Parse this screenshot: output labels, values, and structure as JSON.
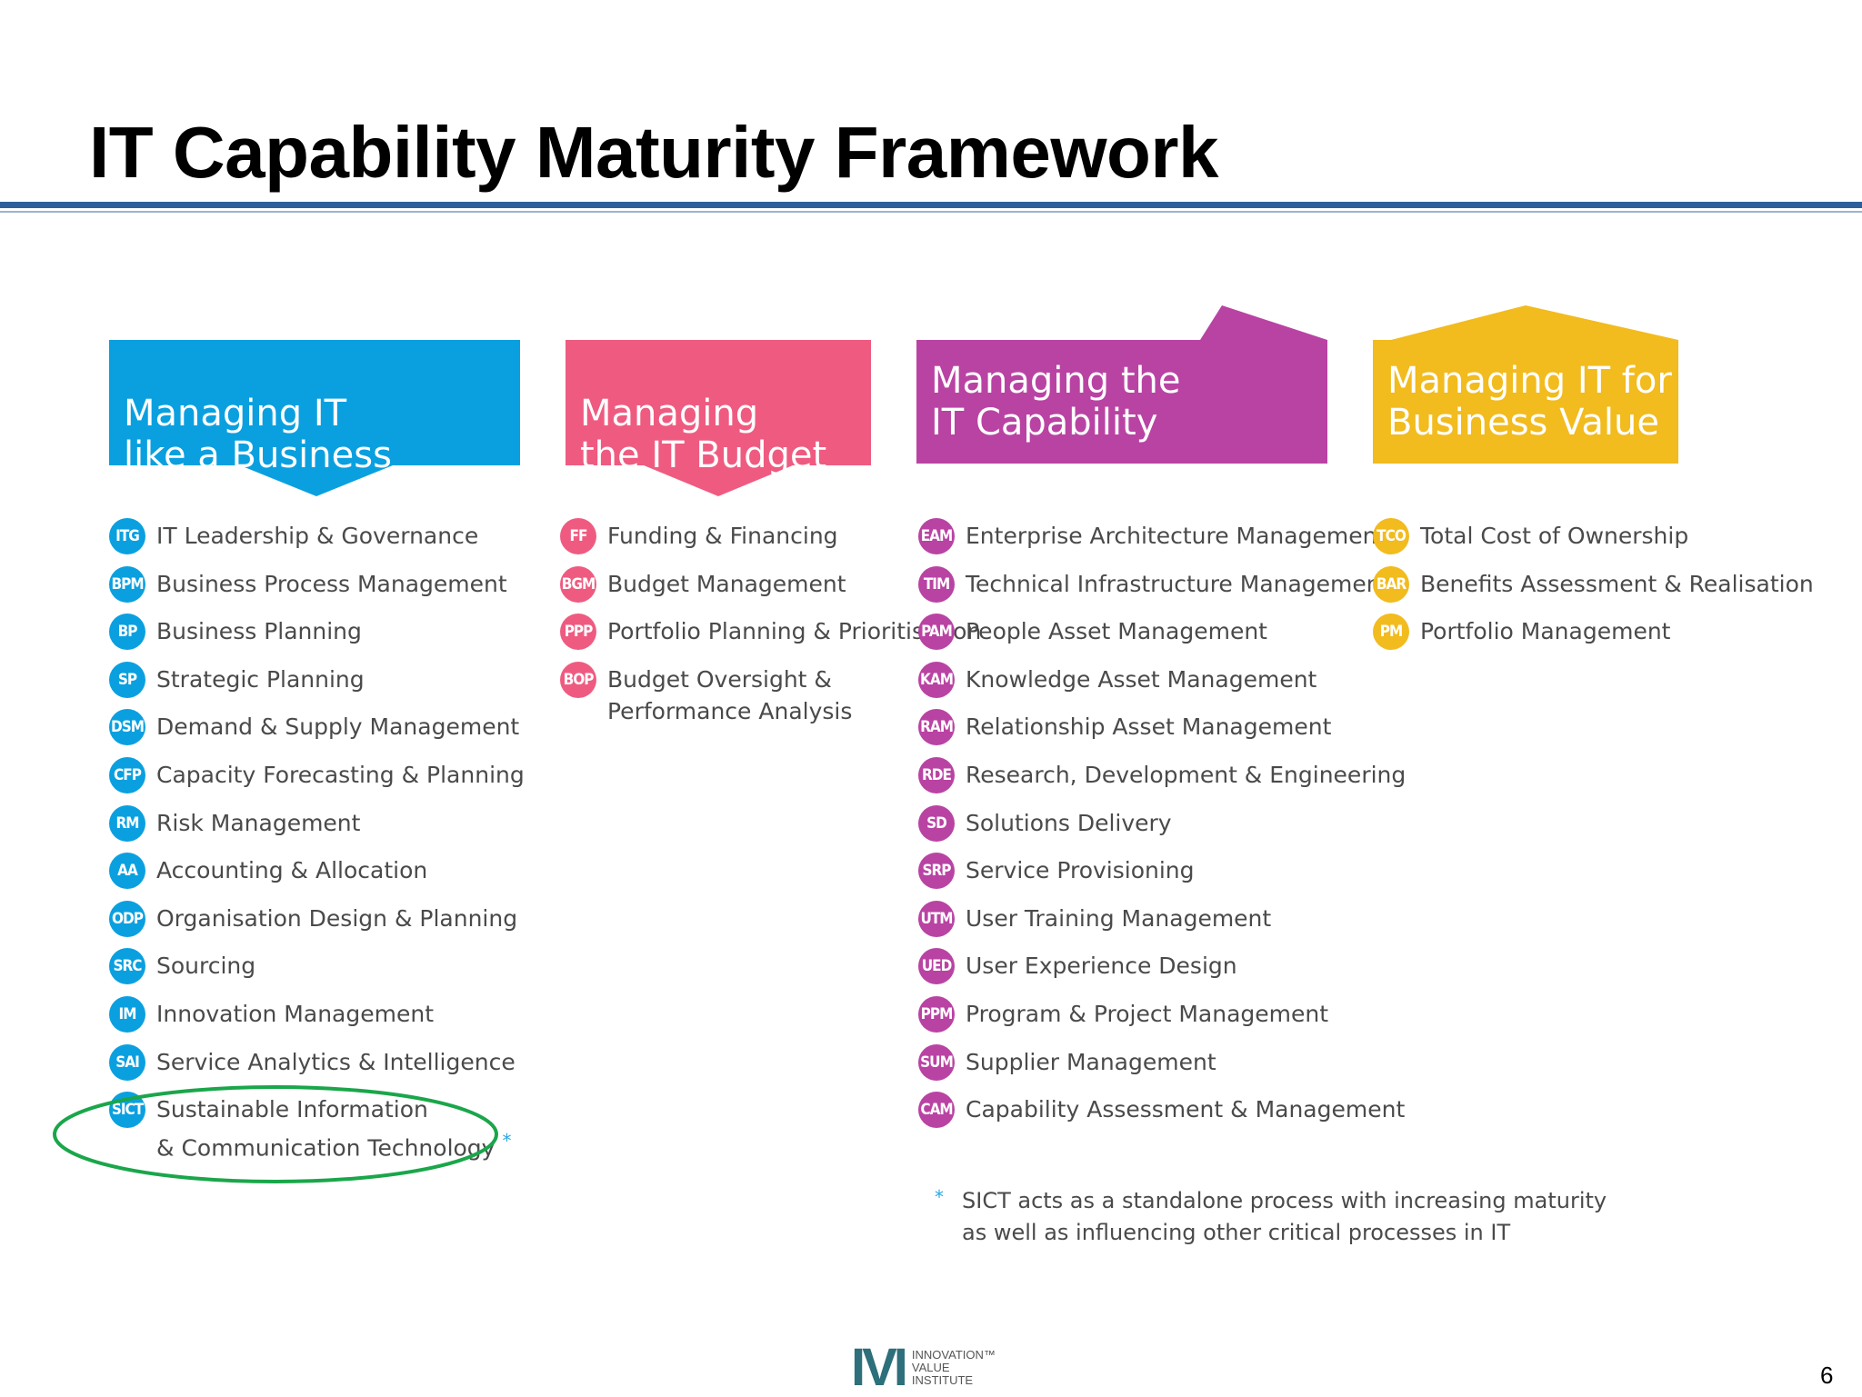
{
  "slide": {
    "title": "IT Capability Maturity Framework",
    "page_number": "6"
  },
  "colors": {
    "blue": "#0aa0e0",
    "pink": "#ef5b80",
    "purple": "#b943a3",
    "yellow": "#f2bb1e",
    "rule": "#2f5f9a",
    "ellipse": "#1aa64a"
  },
  "columns": [
    {
      "id": "business",
      "header_line1": "Managing IT",
      "header_line2": "like a Business",
      "color": "#0aa0e0",
      "items": [
        {
          "code": "ITG",
          "label": "IT Leadership & Governance"
        },
        {
          "code": "BPM",
          "label": "Business Process Management"
        },
        {
          "code": "BP",
          "label": "Business Planning"
        },
        {
          "code": "SP",
          "label": "Strategic Planning"
        },
        {
          "code": "DSM",
          "label": "Demand & Supply Management"
        },
        {
          "code": "CFP",
          "label": "Capacity Forecasting & Planning"
        },
        {
          "code": "RM",
          "label": "Risk Management"
        },
        {
          "code": "AA",
          "label": "Accounting & Allocation"
        },
        {
          "code": "ODP",
          "label": "Organisation Design & Planning"
        },
        {
          "code": "SRC",
          "label": "Sourcing"
        },
        {
          "code": "IM",
          "label": "Innovation Management"
        },
        {
          "code": "SAI",
          "label": "Service Analytics & Intelligence"
        },
        {
          "code": "SICT",
          "label": "Sustainable Information",
          "label2": "& Communication Technology",
          "marker": "*"
        }
      ]
    },
    {
      "id": "budget",
      "header_line1": "Managing",
      "header_line2": "the IT Budget",
      "color": "#ef5b80",
      "items": [
        {
          "code": "FF",
          "label": "Funding & Financing"
        },
        {
          "code": "BGM",
          "label": "Budget Management"
        },
        {
          "code": "PPP",
          "label": "Portfolio Planning & Prioritisation"
        },
        {
          "code": "BOP",
          "label": "Budget Oversight &",
          "label2": "Performance Analysis"
        }
      ]
    },
    {
      "id": "capability",
      "header_line1": "Managing the",
      "header_line2": "IT Capability",
      "color": "#b943a3",
      "items": [
        {
          "code": "EAM",
          "label": "Enterprise Architecture Management"
        },
        {
          "code": "TIM",
          "label": "Technical Infrastructure Management"
        },
        {
          "code": "PAM",
          "label": "People Asset Management"
        },
        {
          "code": "KAM",
          "label": "Knowledge Asset Management"
        },
        {
          "code": "RAM",
          "label": "Relationship Asset Management"
        },
        {
          "code": "RDE",
          "label": "Research, Development & Engineering"
        },
        {
          "code": "SD",
          "label": "Solutions Delivery"
        },
        {
          "code": "SRP",
          "label": "Service Provisioning"
        },
        {
          "code": "UTM",
          "label": "User Training Management"
        },
        {
          "code": "UED",
          "label": "User Experience Design"
        },
        {
          "code": "PPM",
          "label": "Program & Project Management"
        },
        {
          "code": "SUM",
          "label": "Supplier Management"
        },
        {
          "code": "CAM",
          "label": "Capability Assessment & Management"
        }
      ]
    },
    {
      "id": "value",
      "header_line1": "Managing IT for",
      "header_line2": "Business Value",
      "color": "#f2bb1e",
      "items": [
        {
          "code": "TCO",
          "label": "Total Cost of Ownership"
        },
        {
          "code": "BAR",
          "label": "Benefits Assessment & Realisation"
        },
        {
          "code": "PM",
          "label": "Portfolio Management"
        }
      ]
    }
  ],
  "footnote": {
    "marker": "*",
    "line1": "SICT acts as a standalone process with increasing maturity",
    "line2": "as well as influencing other critical processes in IT"
  },
  "logo": {
    "mark": "IVI",
    "line1": "INNOVATION™",
    "line2": "VALUE",
    "line3": "INSTITUTE"
  }
}
